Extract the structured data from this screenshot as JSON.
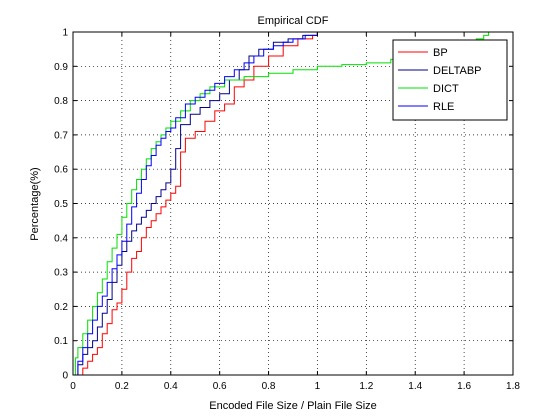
{
  "chart_data": {
    "type": "line",
    "title": "Empirical CDF",
    "xlabel": "Encoded File Size / Plain File Size",
    "ylabel": "Percentage(%)",
    "xlim": [
      0,
      1.8
    ],
    "ylim": [
      0,
      1
    ],
    "xticks": [
      "0",
      "0.2",
      "0.4",
      "0.6",
      "0.8",
      "1",
      "1.2",
      "1.4",
      "1.6",
      "1.8"
    ],
    "yticks": [
      "0",
      "0.1",
      "0.2",
      "0.3",
      "0.4",
      "0.5",
      "0.6",
      "0.7",
      "0.8",
      "0.9",
      "1"
    ],
    "grid": true,
    "legend": "top-right",
    "step": true,
    "series": [
      {
        "name": "BP",
        "color": "#ff0000",
        "points": [
          [
            0,
            0
          ],
          [
            0.04,
            0.02
          ],
          [
            0.06,
            0.04
          ],
          [
            0.08,
            0.06
          ],
          [
            0.1,
            0.08
          ],
          [
            0.12,
            0.12
          ],
          [
            0.14,
            0.15
          ],
          [
            0.16,
            0.19
          ],
          [
            0.18,
            0.21
          ],
          [
            0.2,
            0.25
          ],
          [
            0.22,
            0.3
          ],
          [
            0.24,
            0.34
          ],
          [
            0.26,
            0.36
          ],
          [
            0.28,
            0.4
          ],
          [
            0.3,
            0.43
          ],
          [
            0.32,
            0.45
          ],
          [
            0.34,
            0.47
          ],
          [
            0.36,
            0.49
          ],
          [
            0.38,
            0.51
          ],
          [
            0.4,
            0.53
          ],
          [
            0.42,
            0.55
          ],
          [
            0.44,
            0.65
          ],
          [
            0.46,
            0.69
          ],
          [
            0.5,
            0.71
          ],
          [
            0.54,
            0.74
          ],
          [
            0.58,
            0.77
          ],
          [
            0.62,
            0.79
          ],
          [
            0.66,
            0.84
          ],
          [
            0.7,
            0.86
          ],
          [
            0.74,
            0.9
          ],
          [
            0.8,
            0.93
          ],
          [
            0.86,
            0.96
          ],
          [
            0.92,
            0.98
          ],
          [
            0.98,
            0.99
          ],
          [
            1.0,
            1.0
          ]
        ]
      },
      {
        "name": "DELTABP",
        "color": "#00008b",
        "points": [
          [
            0,
            0
          ],
          [
            0.02,
            0.03
          ],
          [
            0.04,
            0.06
          ],
          [
            0.06,
            0.08
          ],
          [
            0.08,
            0.1
          ],
          [
            0.1,
            0.14
          ],
          [
            0.12,
            0.18
          ],
          [
            0.14,
            0.22
          ],
          [
            0.16,
            0.27
          ],
          [
            0.18,
            0.32
          ],
          [
            0.2,
            0.36
          ],
          [
            0.22,
            0.39
          ],
          [
            0.24,
            0.42
          ],
          [
            0.26,
            0.44
          ],
          [
            0.28,
            0.46
          ],
          [
            0.3,
            0.48
          ],
          [
            0.32,
            0.5
          ],
          [
            0.34,
            0.52
          ],
          [
            0.36,
            0.54
          ],
          [
            0.38,
            0.56
          ],
          [
            0.4,
            0.6
          ],
          [
            0.42,
            0.66
          ],
          [
            0.44,
            0.73
          ],
          [
            0.48,
            0.76
          ],
          [
            0.52,
            0.78
          ],
          [
            0.56,
            0.8
          ],
          [
            0.6,
            0.82
          ],
          [
            0.64,
            0.86
          ],
          [
            0.68,
            0.89
          ],
          [
            0.72,
            0.93
          ],
          [
            0.76,
            0.95
          ],
          [
            0.82,
            0.97
          ],
          [
            0.88,
            0.98
          ],
          [
            0.94,
            0.99
          ],
          [
            1.0,
            1.0
          ]
        ]
      },
      {
        "name": "DICT",
        "color": "#00e000",
        "points": [
          [
            0,
            0
          ],
          [
            0.01,
            0.05
          ],
          [
            0.02,
            0.08
          ],
          [
            0.04,
            0.12
          ],
          [
            0.06,
            0.16
          ],
          [
            0.08,
            0.2
          ],
          [
            0.1,
            0.24
          ],
          [
            0.12,
            0.28
          ],
          [
            0.14,
            0.33
          ],
          [
            0.16,
            0.37
          ],
          [
            0.18,
            0.41
          ],
          [
            0.2,
            0.46
          ],
          [
            0.22,
            0.5
          ],
          [
            0.24,
            0.54
          ],
          [
            0.26,
            0.57
          ],
          [
            0.28,
            0.6
          ],
          [
            0.3,
            0.63
          ],
          [
            0.32,
            0.66
          ],
          [
            0.34,
            0.68
          ],
          [
            0.36,
            0.7
          ],
          [
            0.38,
            0.72
          ],
          [
            0.4,
            0.74
          ],
          [
            0.44,
            0.77
          ],
          [
            0.48,
            0.8
          ],
          [
            0.52,
            0.82
          ],
          [
            0.56,
            0.84
          ],
          [
            0.62,
            0.86
          ],
          [
            0.7,
            0.87
          ],
          [
            0.8,
            0.88
          ],
          [
            0.9,
            0.89
          ],
          [
            1.0,
            0.9
          ],
          [
            1.1,
            0.905
          ],
          [
            1.2,
            0.91
          ],
          [
            1.3,
            0.92
          ],
          [
            1.4,
            0.93
          ],
          [
            1.5,
            0.95
          ],
          [
            1.6,
            0.97
          ],
          [
            1.65,
            0.98
          ],
          [
            1.68,
            0.99
          ],
          [
            1.7,
            1.0
          ]
        ]
      },
      {
        "name": "RLE",
        "color": "#0000ff",
        "points": [
          [
            0,
            0
          ],
          [
            0.02,
            0.04
          ],
          [
            0.04,
            0.08
          ],
          [
            0.06,
            0.12
          ],
          [
            0.08,
            0.16
          ],
          [
            0.1,
            0.2
          ],
          [
            0.12,
            0.23
          ],
          [
            0.14,
            0.27
          ],
          [
            0.16,
            0.31
          ],
          [
            0.18,
            0.35
          ],
          [
            0.2,
            0.39
          ],
          [
            0.22,
            0.44
          ],
          [
            0.24,
            0.49
          ],
          [
            0.26,
            0.53
          ],
          [
            0.28,
            0.57
          ],
          [
            0.3,
            0.61
          ],
          [
            0.32,
            0.64
          ],
          [
            0.34,
            0.67
          ],
          [
            0.36,
            0.69
          ],
          [
            0.38,
            0.71
          ],
          [
            0.4,
            0.72
          ],
          [
            0.42,
            0.75
          ],
          [
            0.46,
            0.79
          ],
          [
            0.5,
            0.81
          ],
          [
            0.54,
            0.83
          ],
          [
            0.58,
            0.85
          ],
          [
            0.62,
            0.87
          ],
          [
            0.66,
            0.89
          ],
          [
            0.7,
            0.91
          ],
          [
            0.74,
            0.93
          ],
          [
            0.78,
            0.95
          ],
          [
            0.82,
            0.96
          ],
          [
            0.86,
            0.97
          ],
          [
            0.9,
            0.98
          ],
          [
            0.95,
            0.99
          ],
          [
            1.0,
            1.0
          ]
        ]
      }
    ]
  }
}
